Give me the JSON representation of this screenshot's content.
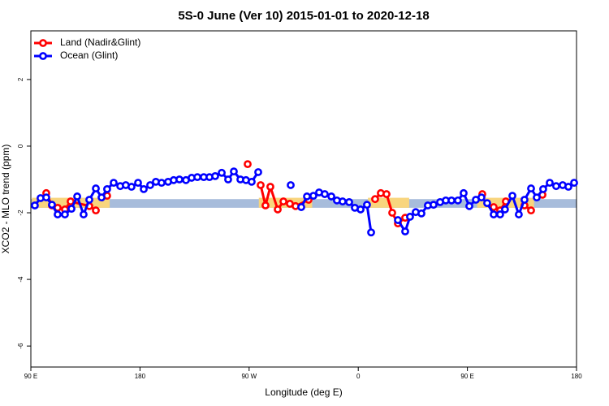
{
  "chart_data": {
    "type": "line",
    "title": "5S-0 June (Ver 10)   2015-01-01 to 2020-12-18",
    "x_label": "Longitude (deg E)",
    "y_label": "XCO2 - MLO trend (ppm)",
    "xlim": [
      90,
      540
    ],
    "xticks": [
      {
        "value": 90,
        "label": "90 E"
      },
      180,
      {
        "value": 270,
        "label": "90 W"
      },
      {
        "value": 360,
        "label": "0"
      },
      {
        "value": 450,
        "label": "90 E"
      },
      {
        "value": 540,
        "label": "180"
      }
    ],
    "ylim": [
      -6.63,
      3.46
    ],
    "yticks": [
      2,
      0,
      -2,
      -4,
      -6
    ],
    "legend": "top-left",
    "bands": [
      {
        "color": "#a7bcdb",
        "x": [
          90,
          540
        ],
        "y": [
          -1.85,
          -1.59
        ]
      },
      {
        "color": "#f8d57e",
        "x": [
          91,
          140
        ],
        "y": [
          -1.85,
          -1.55
        ]
      },
      {
        "color": "#f8d57e",
        "x": [
          138,
          155
        ],
        "y": [
          -1.85,
          -1.55
        ]
      },
      {
        "color": "#f8d57e",
        "x": [
          278,
          322
        ],
        "y": [
          -1.85,
          -1.55
        ]
      },
      {
        "color": "#f8d57e",
        "x": [
          368,
          402
        ],
        "y": [
          -1.85,
          -1.55
        ]
      },
      {
        "color": "#f8d57e",
        "x": [
          458,
          505
        ],
        "y": [
          -1.85,
          -1.55
        ]
      }
    ],
    "series": [
      {
        "name": "Land (Nadir&Glint)",
        "color": "#ff0000",
        "x": [
          102.7,
          107.4,
          112.1,
          118.1,
          122.8,
          138.2,
          143.6,
          null,
          152.9,
          null,
          268.8,
          null,
          279.5,
          283.5,
          287.5,
          293.6,
          298.3,
          303.6,
          308.3,
          319,
          null,
          373.9,
          378.6,
          383.3,
          388,
          392.7,
          398.7,
          null,
          462.3,
          null,
          471.7,
          477,
          481.7,
          null,
          497.1,
          502.5,
          null,
          511.9
        ],
        "values": [
          -1.41,
          -1.78,
          -1.85,
          -1.9,
          -1.66,
          -1.8,
          -1.93,
          null,
          -1.49,
          null,
          -0.54,
          null,
          -1.17,
          -1.78,
          -1.22,
          -1.9,
          -1.66,
          -1.73,
          -1.8,
          -1.61,
          null,
          -1.59,
          -1.41,
          -1.44,
          -2.0,
          -2.32,
          -2.15,
          null,
          -1.44,
          null,
          -1.83,
          -1.93,
          -1.66,
          null,
          -1.78,
          -1.93,
          null,
          -1.46
        ]
      },
      {
        "name": "Ocean (Glint)",
        "color": "#0000ff",
        "x": [
          93.3,
          98,
          102.7,
          107.4,
          112.1,
          118.1,
          123.5,
          128.2,
          133.5,
          138.2,
          143.6,
          148.3,
          152.9,
          158.3,
          163.7,
          168.3,
          173,
          178.4,
          183.1,
          188.4,
          193.1,
          197.8,
          203.2,
          207.8,
          212.5,
          217.9,
          222.6,
          227.3,
          232.6,
          237.3,
          242,
          247.4,
          252.7,
          257.4,
          262.8,
          267.4,
          272.1,
          277.5,
          null,
          304.3,
          null,
          313,
          317.7,
          323,
          327.7,
          332.4,
          337.8,
          342.4,
          347.1,
          352.5,
          357.2,
          361.9,
          367.2,
          370.6,
          null,
          392.7,
          398.7,
          402.7,
          407.4,
          412.1,
          417.4,
          422.1,
          427.5,
          432.2,
          436.9,
          442.2,
          446.9,
          451.6,
          457,
          461.6,
          466.3,
          471.7,
          477,
          481,
          487.1,
          492.4,
          497.1,
          502.5,
          507.2,
          512.5,
          517.9,
          523.2,
          528.6,
          533.3,
          538
        ],
        "values": [
          -1.78,
          -1.56,
          -1.54,
          -1.76,
          -2.05,
          -2.05,
          -1.88,
          -1.51,
          -2.05,
          -1.61,
          -1.27,
          -1.54,
          -1.29,
          -1.1,
          -1.2,
          -1.17,
          -1.22,
          -1.1,
          -1.29,
          -1.17,
          -1.07,
          -1.1,
          -1.07,
          -1.02,
          -1.0,
          -1.02,
          -0.95,
          -0.93,
          -0.93,
          -0.93,
          -0.9,
          -0.8,
          -1.0,
          -0.76,
          -1.0,
          -1.02,
          -1.07,
          -0.78,
          null,
          -1.17,
          null,
          -1.83,
          -1.51,
          -1.49,
          -1.39,
          -1.44,
          -1.51,
          -1.63,
          -1.66,
          -1.68,
          -1.85,
          -1.9,
          -1.76,
          -2.59,
          null,
          -2.22,
          -2.56,
          -2.12,
          -1.98,
          -2.02,
          -1.78,
          -1.76,
          -1.68,
          -1.63,
          -1.63,
          -1.63,
          -1.41,
          -1.8,
          -1.61,
          -1.54,
          -1.71,
          -2.05,
          -2.05,
          -1.9,
          -1.49,
          -2.05,
          -1.61,
          -1.27,
          -1.54,
          -1.29,
          -1.1,
          -1.2,
          -1.17,
          -1.22,
          -1.1
        ]
      }
    ]
  }
}
